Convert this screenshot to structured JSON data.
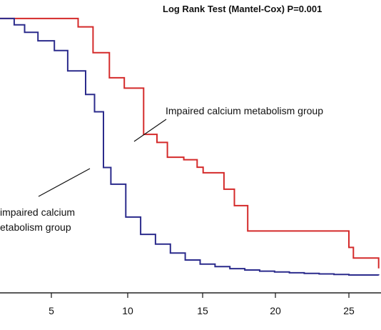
{
  "chart_data": {
    "type": "line",
    "title": "Log Rank Test (Mantel-Cox) P=0.001",
    "xlabel": "",
    "ylabel": "",
    "xlim": [
      -3.5,
      27
    ],
    "ylim": [
      0,
      1.0
    ],
    "x_ticks": [
      "5",
      "10",
      "15",
      "20",
      "25"
    ],
    "colors": {
      "red": "#d42a2a",
      "blue": "#2b2b8c",
      "axis": "#222222"
    },
    "series": [
      {
        "color": "#d42a2a",
        "step": true,
        "x": [
          -3.5,
          6,
          6.8,
          7.2,
          7.8,
          8.2,
          8.9,
          9.3,
          9.9,
          10.3,
          11.2,
          12.1,
          12.8,
          13.9,
          14.8,
          15.2,
          16.6,
          17.3,
          18.2,
          25,
          25.3,
          27
        ],
        "y": [
          0.985,
          0.985,
          0.955,
          0.955,
          0.862,
          0.862,
          0.772,
          0.772,
          0.735,
          0.735,
          0.569,
          0.54,
          0.487,
          0.478,
          0.451,
          0.431,
          0.372,
          0.313,
          0.222,
          0.163,
          0.125,
          0.088
        ]
      },
      {
        "color": "#2b2b8c",
        "step": true,
        "x": [
          -3.5,
          1.6,
          2.5,
          3.2,
          4.1,
          5.2,
          6.1,
          7.3,
          7.9,
          8.5,
          9.0,
          10.0,
          11.0,
          12.0,
          13.0,
          14.0,
          15.0,
          16.0,
          17.0,
          18.0,
          19.0,
          20.0,
          21.0,
          22.0,
          23.0,
          24.0,
          25.0,
          27
        ],
        "y": [
          0.985,
          0.985,
          0.962,
          0.935,
          0.905,
          0.87,
          0.797,
          0.712,
          0.65,
          0.45,
          0.39,
          0.272,
          0.21,
          0.175,
          0.143,
          0.118,
          0.103,
          0.094,
          0.087,
          0.082,
          0.078,
          0.075,
          0.072,
          0.07,
          0.068,
          0.066,
          0.064,
          0.063
        ]
      }
    ],
    "annotations": [
      "Impaired calcium metabolism group",
      "impaired calcium",
      "etabolism group"
    ]
  }
}
